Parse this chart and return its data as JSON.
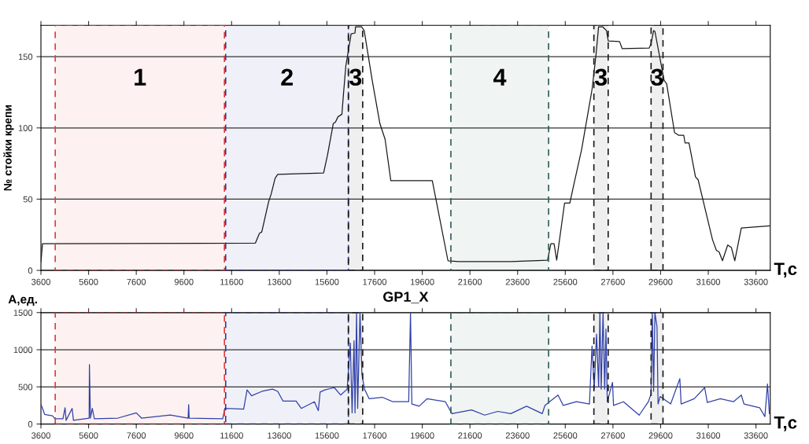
{
  "chart_data": [
    {
      "type": "line",
      "ylabel": "№ стойки крепи",
      "xlabel": "T,с",
      "xlim": [
        3600,
        34200
      ],
      "xticks": [
        3600,
        5600,
        7600,
        9600,
        11600,
        13600,
        15600,
        17600,
        19600,
        21600,
        23600,
        25600,
        27600,
        29600,
        31600,
        33600
      ],
      "ylim": [
        0,
        172
      ],
      "yticks": [
        0,
        50,
        100,
        150
      ],
      "grid": "y",
      "series": [
        {
          "color": "#1a1a1a",
          "x": [
            3600,
            3666,
            12600,
            12766,
            12866,
            13150,
            13260,
            13425,
            13535,
            15460,
            15625,
            15865,
            15955,
            16063,
            16228,
            16283,
            16393,
            16558,
            16613,
            16778,
            16800,
            17053,
            17163,
            17493,
            17822,
            18040,
            18280,
            20020,
            20678,
            21118,
            23316,
            24855,
            24997,
            25130,
            25240,
            25570,
            25790,
            25955,
            26285,
            26723,
            26888,
            26998,
            27163,
            27328,
            27404,
            27876,
            27986,
            29120,
            29196,
            29306,
            29361,
            29746,
            29855,
            30185,
            30350,
            30570,
            30626,
            30791,
            31064,
            31174,
            31778,
            31943,
            32052,
            32195,
            32415,
            32570,
            32712,
            32986,
            34163
          ],
          "values": [
            6,
            18.7,
            19.2,
            26,
            27,
            48,
            53.6,
            64.6,
            67.4,
            68.3,
            81,
            103,
            104,
            107.8,
            109.6,
            121.6,
            143.6,
            160,
            166,
            166.6,
            171,
            171,
            168.3,
            134,
            103,
            92,
            63,
            63,
            6.8,
            6.2,
            6.2,
            7.2,
            18.7,
            18.7,
            7.2,
            47.2,
            47.2,
            60,
            84.8,
            127,
            151,
            171,
            171,
            168.3,
            161,
            160.6,
            155.7,
            156,
            159,
            168.3,
            167.7,
            133.5,
            130.8,
            96.7,
            94.9,
            94.9,
            89.4,
            89.4,
            65.6,
            63.6,
            21.5,
            14,
            13,
            6.8,
            17.8,
            16,
            6.8,
            29.8,
            31.2
          ]
        }
      ],
      "bands": [
        {
          "axis": "x",
          "from": 4200,
          "to": 11300,
          "label": "1",
          "color": "#e03a3a"
        },
        {
          "axis": "x",
          "from": 11350,
          "to": 16500,
          "label": "2",
          "color": "#2e3a96"
        },
        {
          "axis": "x",
          "from": 16500,
          "to": 17100,
          "label": "3",
          "color": "#1a1a1a"
        },
        {
          "axis": "x",
          "from": 20800,
          "to": 24900,
          "label": "4",
          "color": "#2f5f5a"
        },
        {
          "axis": "x",
          "from": 26800,
          "to": 27400,
          "label": "3",
          "color": "#1a1a1a"
        },
        {
          "axis": "x",
          "from": 29200,
          "to": 29700,
          "label": "3",
          "color": "#1a1a1a"
        }
      ]
    },
    {
      "type": "line",
      "title": "GP1_X",
      "ylabel": "А,ед.",
      "xlabel": "T,с",
      "xlim": [
        3600,
        34200
      ],
      "xticks": [
        3600,
        5600,
        7600,
        9600,
        11600,
        13600,
        15600,
        17600,
        19600,
        21600,
        23600,
        25600,
        27600,
        29600,
        31600,
        33600
      ],
      "ylim": [
        0,
        1500
      ],
      "yticks": [
        0,
        500,
        1000,
        1500
      ],
      "grid": "y",
      "series": [
        {
          "color": "#3040a8",
          "x": [
            3600,
            3644,
            3754,
            4084,
            4193,
            4523,
            4612,
            4655,
            4909,
            4964,
            5623,
            5634,
            5678,
            5755,
            5842,
            6831,
            7600,
            7820,
            9030,
            9776,
            9798,
            9820,
            11227,
            11315,
            12106,
            12249,
            12436,
            12876,
            13315,
            13535,
            13755,
            14305,
            14524,
            15074,
            15238,
            15314,
            15512,
            15909,
            16173,
            16448,
            16580,
            16656,
            16737,
            16778,
            16844,
            16888,
            16987,
            17067,
            17175,
            17373,
            17922,
            18370,
            19030,
            19106,
            19163,
            19470,
            19800,
            20569,
            20844,
            21668,
            22217,
            22767,
            23316,
            23976,
            24635,
            24745,
            25295,
            25515,
            26064,
            26614,
            26723,
            26812,
            26912,
            27000,
            27053,
            27108,
            27185,
            27253,
            27307,
            27362,
            27581,
            27625,
            28042,
            28702,
            29087,
            29196,
            29251,
            29306,
            29361,
            29449,
            29493,
            29581,
            30021,
            30406,
            30461,
            31010,
            31449,
            31559,
            32108,
            32657,
            32986,
            33096,
            33755,
            33975,
            34085,
            34163
          ],
          "values": [
            260,
            230,
            130,
            110,
            70,
            70,
            220,
            50,
            210,
            50,
            80,
            800,
            80,
            210,
            70,
            80,
            150,
            80,
            120,
            80,
            260,
            80,
            70,
            210,
            200,
            460,
            380,
            440,
            470,
            440,
            310,
            310,
            210,
            300,
            180,
            430,
            460,
            490,
            390,
            470,
            1090,
            150,
            1120,
            150,
            1500,
            210,
            1500,
            670,
            470,
            340,
            360,
            300,
            300,
            1500,
            270,
            240,
            340,
            300,
            140,
            190,
            120,
            170,
            140,
            240,
            140,
            250,
            390,
            250,
            300,
            270,
            1050,
            470,
            1210,
            500,
            1500,
            470,
            1500,
            470,
            1280,
            300,
            560,
            250,
            300,
            120,
            300,
            400,
            1500,
            440,
            1500,
            1310,
            270,
            370,
            270,
            610,
            270,
            340,
            490,
            290,
            340,
            300,
            390,
            270,
            220,
            100,
            540,
            140
          ]
        }
      ],
      "bands": [
        {
          "axis": "x",
          "from": 4200,
          "to": 11300,
          "color": "#e03a3a"
        },
        {
          "axis": "x",
          "from": 11350,
          "to": 16500,
          "color": "#2e3a96"
        },
        {
          "axis": "x",
          "from": 16500,
          "to": 17100,
          "color": "#1a1a1a"
        },
        {
          "axis": "x",
          "from": 20800,
          "to": 24900,
          "color": "#2f5f5a"
        },
        {
          "axis": "x",
          "from": 26800,
          "to": 27400,
          "color": "#1a1a1a"
        },
        {
          "axis": "x",
          "from": 29200,
          "to": 29700,
          "color": "#1a1a1a"
        }
      ]
    }
  ]
}
